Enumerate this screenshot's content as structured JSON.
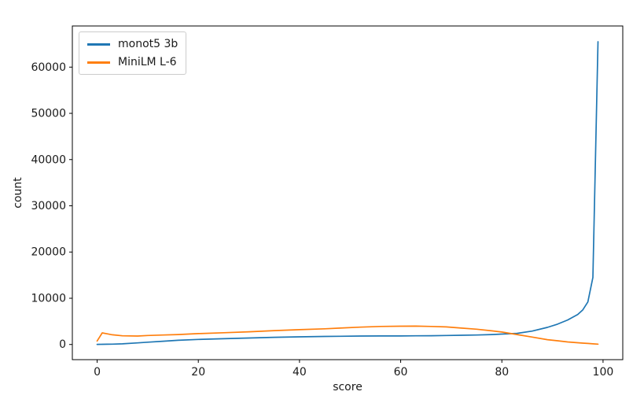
{
  "chart_data": {
    "type": "line",
    "title": "",
    "xlabel": "score",
    "ylabel": "count",
    "grid": false,
    "legend_position": "upper-left",
    "background_color": "#ffffff",
    "xlim": [
      -4.9,
      103.9
    ],
    "ylim": [
      -3280,
      68900
    ],
    "xticks": [
      0,
      20,
      40,
      60,
      80,
      100
    ],
    "yticks": [
      0,
      10000,
      20000,
      30000,
      40000,
      50000,
      60000
    ],
    "x": [
      0,
      1,
      2,
      3,
      5,
      8,
      10,
      13,
      16,
      20,
      25,
      30,
      35,
      40,
      45,
      48,
      52,
      56,
      60,
      63,
      66,
      69,
      72,
      75,
      78,
      80,
      83,
      86,
      89,
      91,
      93,
      95,
      96,
      97,
      98,
      99
    ],
    "series": [
      {
        "name": "monot5 3b",
        "color": "#1f77b4",
        "values": [
          30,
          40,
          60,
          80,
          150,
          350,
          500,
          700,
          900,
          1100,
          1250,
          1400,
          1550,
          1650,
          1750,
          1780,
          1820,
          1850,
          1850,
          1880,
          1900,
          1950,
          2000,
          2050,
          2150,
          2250,
          2400,
          2900,
          3700,
          4400,
          5300,
          6500,
          7500,
          9200,
          14500,
          65500
        ]
      },
      {
        "name": "MiniLM L-6",
        "color": "#ff7f0e",
        "values": [
          750,
          2500,
          2300,
          2100,
          1870,
          1820,
          1950,
          2050,
          2150,
          2350,
          2550,
          2750,
          3000,
          3200,
          3400,
          3550,
          3750,
          3900,
          3950,
          3980,
          3900,
          3800,
          3550,
          3300,
          2950,
          2700,
          2150,
          1600,
          1050,
          800,
          550,
          380,
          300,
          230,
          150,
          80
        ]
      }
    ]
  }
}
